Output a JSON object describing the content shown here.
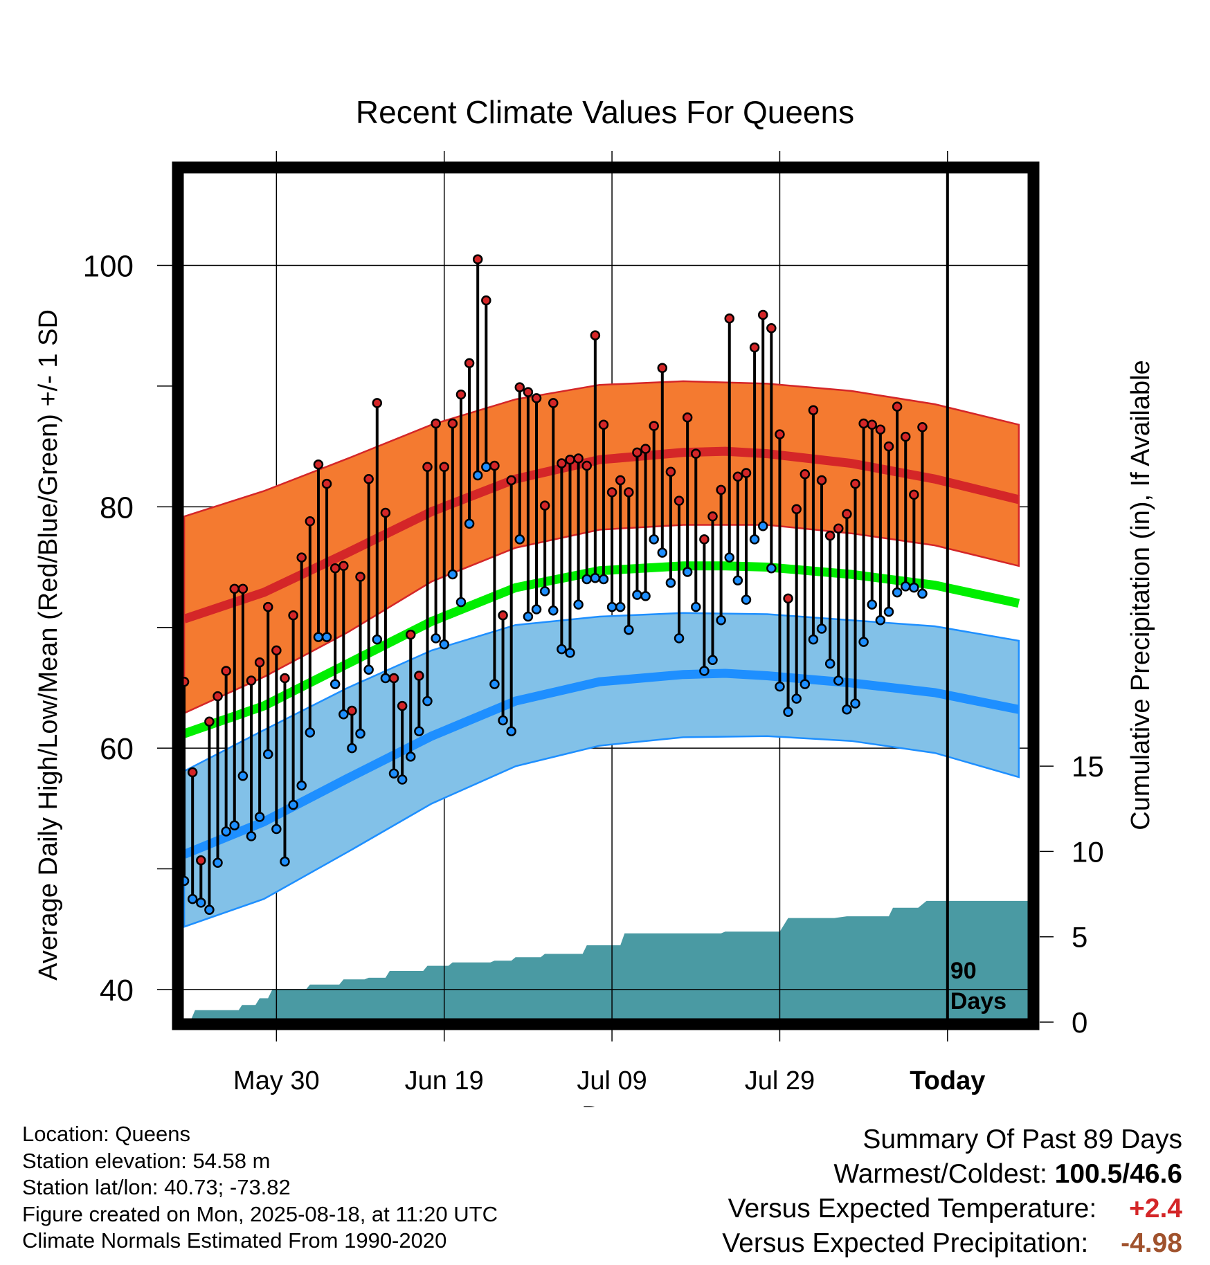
{
  "chart_data": {
    "type": "line",
    "title": "Recent Climate Values For Queens",
    "xlabel": "Day",
    "ylabel": "Average Daily High/Low/Mean (Red/Blue/Green) +/- 1 SD",
    "y2label": "Cumulative Precipitation (in), If Available",
    "ylim": [
      37.3,
      108
    ],
    "y2lim": [
      0,
      50
    ],
    "xlim": [
      0,
      101.5
    ],
    "yticks": [
      "100",
      "80",
      "60",
      "40"
    ],
    "y2ticks": [
      "0",
      "5",
      "10",
      "15"
    ],
    "xticks": [
      {
        "day": 11.5,
        "label": "May 30"
      },
      {
        "day": 31.5,
        "label": "Jun 19"
      },
      {
        "day": 51.5,
        "label": "Jul 09"
      },
      {
        "day": 71.5,
        "label": "Jul 29"
      },
      {
        "day": 91.5,
        "label": "Today"
      }
    ],
    "today_label": [
      "90",
      "Days"
    ],
    "grid": true,
    "normal_high": [
      [
        0.5,
        70.7
      ],
      [
        10,
        72.9
      ],
      [
        20,
        76.2
      ],
      [
        30,
        79.6
      ],
      [
        40,
        82.3
      ],
      [
        50,
        83.9
      ],
      [
        60,
        84.5
      ],
      [
        65,
        84.6
      ],
      [
        70,
        84.4
      ],
      [
        80,
        83.6
      ],
      [
        90,
        82.3
      ],
      [
        100,
        80.6
      ]
    ],
    "normal_low": [
      [
        0.5,
        51.2
      ],
      [
        10,
        53.9
      ],
      [
        20,
        57.5
      ],
      [
        30,
        61.0
      ],
      [
        40,
        63.9
      ],
      [
        50,
        65.5
      ],
      [
        60,
        66.1
      ],
      [
        65,
        66.2
      ],
      [
        70,
        66.0
      ],
      [
        80,
        65.4
      ],
      [
        90,
        64.6
      ],
      [
        100,
        63.2
      ]
    ],
    "normal_mean": [
      [
        0.5,
        61.2
      ],
      [
        10,
        63.5
      ],
      [
        20,
        67.0
      ],
      [
        30,
        70.5
      ],
      [
        40,
        73.3
      ],
      [
        50,
        74.7
      ],
      [
        60,
        75.1
      ],
      [
        65,
        75.1
      ],
      [
        70,
        75.0
      ],
      [
        80,
        74.4
      ],
      [
        90,
        73.5
      ],
      [
        100,
        72.0
      ]
    ],
    "high_band_upper": [
      [
        0.5,
        79.2
      ],
      [
        10,
        81.3
      ],
      [
        20,
        84.0
      ],
      [
        30,
        86.8
      ],
      [
        40,
        88.9
      ],
      [
        50,
        90.1
      ],
      [
        60,
        90.4
      ],
      [
        70,
        90.2
      ],
      [
        80,
        89.6
      ],
      [
        90,
        88.5
      ],
      [
        100,
        86.8
      ]
    ],
    "high_band_lower": [
      [
        0.5,
        62.9
      ],
      [
        10,
        65.9
      ],
      [
        20,
        69.6
      ],
      [
        30,
        73.8
      ],
      [
        40,
        76.6
      ],
      [
        50,
        78.1
      ],
      [
        60,
        78.5
      ],
      [
        70,
        78.5
      ],
      [
        80,
        77.8
      ],
      [
        90,
        76.8
      ],
      [
        100,
        75.1
      ]
    ],
    "low_band_upper": [
      [
        0.5,
        58.1
      ],
      [
        10,
        61.5
      ],
      [
        20,
        65.0
      ],
      [
        30,
        68.1
      ],
      [
        40,
        70.2
      ],
      [
        50,
        70.9
      ],
      [
        60,
        71.2
      ],
      [
        70,
        71.1
      ],
      [
        80,
        70.6
      ],
      [
        90,
        70.1
      ],
      [
        100,
        68.9
      ]
    ],
    "low_band_lower": [
      [
        0.5,
        45.2
      ],
      [
        10,
        47.5
      ],
      [
        20,
        51.4
      ],
      [
        30,
        55.4
      ],
      [
        40,
        58.5
      ],
      [
        50,
        60.2
      ],
      [
        60,
        60.9
      ],
      [
        70,
        61.0
      ],
      [
        80,
        60.6
      ],
      [
        90,
        59.6
      ],
      [
        100,
        57.6
      ]
    ],
    "daily": [
      [
        0,
        65.5,
        49.0
      ],
      [
        1,
        58.0,
        47.5
      ],
      [
        2,
        50.7,
        47.2
      ],
      [
        3,
        62.2,
        46.6
      ],
      [
        4,
        64.3,
        50.5
      ],
      [
        5,
        66.4,
        53.1
      ],
      [
        6,
        73.2,
        53.6
      ],
      [
        7,
        73.2,
        57.7
      ],
      [
        8,
        65.6,
        52.7
      ],
      [
        9,
        67.1,
        54.3
      ],
      [
        10,
        71.7,
        59.5
      ],
      [
        11,
        68.1,
        53.3
      ],
      [
        12,
        65.8,
        50.6
      ],
      [
        13,
        71.0,
        55.3
      ],
      [
        14,
        75.8,
        56.9
      ],
      [
        15,
        78.8,
        61.3
      ],
      [
        16,
        83.5,
        69.2
      ],
      [
        17,
        81.9,
        69.2
      ],
      [
        18,
        74.9,
        65.3
      ],
      [
        19,
        75.1,
        62.8
      ],
      [
        20,
        63.1,
        60.0
      ],
      [
        21,
        74.2,
        61.2
      ],
      [
        22,
        82.3,
        66.5
      ],
      [
        23,
        88.6,
        69.0
      ],
      [
        24,
        79.5,
        65.8
      ],
      [
        25,
        65.8,
        57.9
      ],
      [
        26,
        63.5,
        57.4
      ],
      [
        27,
        69.4,
        59.3
      ],
      [
        28,
        66.0,
        61.4
      ],
      [
        29,
        83.3,
        63.9
      ],
      [
        30,
        86.9,
        69.1
      ],
      [
        31,
        83.3,
        68.6
      ],
      [
        32,
        86.9,
        74.4
      ],
      [
        33,
        89.3,
        72.1
      ],
      [
        34,
        91.9,
        78.6
      ],
      [
        35,
        100.5,
        82.6
      ],
      [
        36,
        97.1,
        83.3
      ],
      [
        37,
        83.4,
        65.3
      ],
      [
        38,
        71.0,
        62.3
      ],
      [
        39,
        82.2,
        61.4
      ],
      [
        40,
        89.9,
        77.3
      ],
      [
        41,
        89.5,
        70.9
      ],
      [
        42,
        89.0,
        71.5
      ],
      [
        43,
        80.1,
        73.0
      ],
      [
        44,
        88.6,
        71.4
      ],
      [
        45,
        83.6,
        68.2
      ],
      [
        46,
        83.9,
        67.9
      ],
      [
        47,
        84.0,
        71.9
      ],
      [
        48,
        83.4,
        74.0
      ],
      [
        49,
        94.2,
        74.1
      ],
      [
        50,
        86.8,
        74.0
      ],
      [
        51,
        81.2,
        71.7
      ],
      [
        52,
        82.2,
        71.7
      ],
      [
        53,
        81.2,
        69.8
      ],
      [
        54,
        84.5,
        72.7
      ],
      [
        55,
        84.8,
        72.6
      ],
      [
        56,
        86.7,
        77.3
      ],
      [
        57,
        91.5,
        76.2
      ],
      [
        58,
        82.9,
        73.7
      ],
      [
        59,
        80.5,
        69.1
      ],
      [
        60,
        87.4,
        74.6
      ],
      [
        61,
        84.4,
        71.7
      ],
      [
        62,
        77.3,
        66.4
      ],
      [
        63,
        79.2,
        67.3
      ],
      [
        64,
        81.4,
        70.6
      ],
      [
        65,
        95.6,
        75.8
      ],
      [
        66,
        82.5,
        73.9
      ],
      [
        67,
        82.8,
        72.3
      ],
      [
        68,
        93.2,
        77.3
      ],
      [
        69,
        95.9,
        78.4
      ],
      [
        70,
        94.8,
        74.9
      ],
      [
        71,
        86.0,
        65.1
      ],
      [
        72,
        72.4,
        63.0
      ],
      [
        73,
        79.8,
        64.1
      ],
      [
        74,
        82.7,
        65.3
      ],
      [
        75,
        88.0,
        69.0
      ],
      [
        76,
        82.2,
        69.9
      ],
      [
        77,
        77.6,
        67.0
      ],
      [
        78,
        78.2,
        65.6
      ],
      [
        79,
        79.4,
        63.2
      ],
      [
        80,
        81.9,
        63.7
      ],
      [
        81,
        86.9,
        68.8
      ],
      [
        82,
        86.8,
        71.9
      ],
      [
        83,
        86.4,
        70.6
      ],
      [
        84,
        85.0,
        71.3
      ],
      [
        85,
        88.3,
        72.9
      ],
      [
        86,
        85.8,
        73.4
      ],
      [
        87,
        81.0,
        73.3
      ],
      [
        88,
        86.6,
        72.8
      ]
    ],
    "precip_cumulative": [
      [
        0,
        0
      ],
      [
        1.2,
        0
      ],
      [
        1.8,
        0.7
      ],
      [
        7,
        0.7
      ],
      [
        7.4,
        1.0
      ],
      [
        9,
        1.0
      ],
      [
        9.5,
        1.4
      ],
      [
        10.5,
        1.4
      ],
      [
        11,
        1.9
      ],
      [
        15,
        1.9
      ],
      [
        15.5,
        2.2
      ],
      [
        19,
        2.2
      ],
      [
        19.5,
        2.5
      ],
      [
        22,
        2.5
      ],
      [
        22.5,
        2.6
      ],
      [
        24.5,
        2.6
      ],
      [
        25,
        3.0
      ],
      [
        29,
        3.0
      ],
      [
        29.5,
        3.3
      ],
      [
        32,
        3.3
      ],
      [
        32.5,
        3.5
      ],
      [
        37,
        3.5
      ],
      [
        37.5,
        3.6
      ],
      [
        39.5,
        3.6
      ],
      [
        40,
        3.8
      ],
      [
        43,
        3.8
      ],
      [
        43.5,
        4.0
      ],
      [
        48,
        4.0
      ],
      [
        48.5,
        4.5
      ],
      [
        52.5,
        4.5
      ],
      [
        53,
        5.2
      ],
      [
        64.5,
        5.2
      ],
      [
        65,
        5.3
      ],
      [
        68.5,
        5.3
      ],
      [
        69,
        5.3
      ],
      [
        71.5,
        5.3
      ],
      [
        72.5,
        6.1
      ],
      [
        78,
        6.1
      ],
      [
        79.5,
        6.2
      ],
      [
        84.5,
        6.2
      ],
      [
        85,
        6.7
      ],
      [
        88,
        6.7
      ],
      [
        89,
        7.1
      ],
      [
        101.5,
        7.1
      ]
    ],
    "colors": {
      "high_band": "#f47a30",
      "high_line": "#d42628",
      "mean_line": "#00ee00",
      "low_band": "#82c1e8",
      "low_line": "#1e8fff",
      "precip": "#4a9aa3",
      "high_dot": "#d42628",
      "low_dot": "#1e8fff"
    }
  },
  "info": {
    "location": "Location: Queens",
    "elevation": "Station elevation: 54.58 m",
    "latlon": "Station lat/lon: 40.73; -73.82",
    "created": "Figure created on Mon, 2025-08-18, at 11:20 UTC",
    "normals": "Climate Normals Estimated From 1990-2020"
  },
  "summary": {
    "title": "Summary Of Past 89 Days",
    "warm_cold_label": "Warmest/Coldest:",
    "warm_cold_value": "100.5/46.6",
    "temp_label": "Versus Expected Temperature:",
    "temp_value": "+2.4",
    "temp_color": "#d42628",
    "precip_label": "Versus Expected Precipitation:",
    "precip_value": "-4.98",
    "precip_color": "#a0522d"
  }
}
